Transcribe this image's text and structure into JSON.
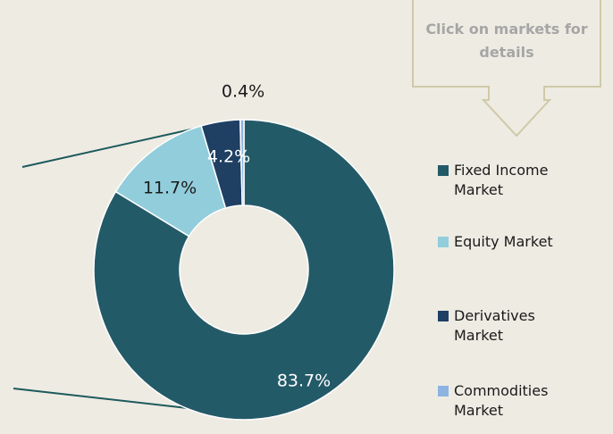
{
  "chart_data": {
    "type": "donut",
    "annotation": "Click on markets for details",
    "series": [
      {
        "name": "Fixed Income Market",
        "color": "#235a68",
        "values": [
          83.7
        ],
        "value_labels": [
          "83.7%"
        ]
      },
      {
        "name": "Equity Market",
        "color": "#92cddc",
        "values": [
          11.7
        ],
        "value_labels": [
          "11.7%"
        ]
      },
      {
        "name": "Derivatives Market",
        "color": "#1f3f63",
        "values": [
          4.2
        ],
        "value_labels": [
          "4.2%"
        ]
      },
      {
        "name": "Commodities Market",
        "color": "#8db3e2",
        "values": [
          0.4
        ],
        "value_labels": [
          "0.4%"
        ]
      }
    ]
  }
}
